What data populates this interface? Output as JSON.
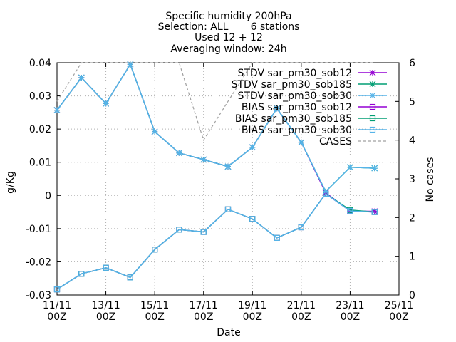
{
  "chart_data": {
    "type": "line",
    "title_lines": [
      "Specific humidity 200hPa",
      "Selection: ALL       6 stations",
      "Used 12 + 12",
      "Averaging window: 24h"
    ],
    "xlabel": "Date",
    "ylabel": "g/Kg",
    "y2label": "No cases",
    "x_ticks": [
      {
        "day": 0,
        "line1": "11/11",
        "line2": "00Z"
      },
      {
        "day": 2,
        "line1": "13/11",
        "line2": "00Z"
      },
      {
        "day": 4,
        "line1": "15/11",
        "line2": "00Z"
      },
      {
        "day": 6,
        "line1": "17/11",
        "line2": "00Z"
      },
      {
        "day": 8,
        "line1": "19/11",
        "line2": "00Z"
      },
      {
        "day": 10,
        "line1": "21/11",
        "line2": "00Z"
      },
      {
        "day": 12,
        "line1": "23/11",
        "line2": "00Z"
      },
      {
        "day": 14,
        "line1": "25/11",
        "line2": "00Z"
      }
    ],
    "xlim": [
      0,
      14
    ],
    "ylim": [
      -0.03,
      0.04
    ],
    "y_ticks": [
      -0.03,
      -0.02,
      -0.01,
      0,
      0.01,
      0.02,
      0.03,
      0.04
    ],
    "y_tick_labels": [
      "-0.03",
      "-0.02",
      "-0.01",
      "0",
      "0.01",
      "0.02",
      "0.03",
      "0.04"
    ],
    "y2lim": [
      0,
      6
    ],
    "y2_ticks": [
      0,
      1,
      2,
      3,
      4,
      5,
      6
    ],
    "y2_tick_labels": [
      "0",
      "1",
      "2",
      "3",
      "4",
      "5",
      "6"
    ],
    "x": [
      0,
      1,
      2,
      3,
      4,
      5,
      6,
      7,
      8,
      9,
      10,
      11,
      12,
      13
    ],
    "series": [
      {
        "name": "STDV sar_p m30_s ob12",
        "legend": "STDV sar_pm30_sob12",
        "kind": "stdv",
        "color": "#9400d3",
        "marker": "star",
        "axis": "y",
        "values": [
          0.0257,
          0.0355,
          0.0277,
          0.0395,
          0.0192,
          0.0128,
          0.0108,
          0.0087,
          0.0145,
          0.0262,
          0.016,
          0.0008,
          -0.0047,
          -0.0048
        ]
      },
      {
        "name": "STDV sar_p m30_s ob185",
        "legend": "STDV sar_pm30_sob185",
        "kind": "stdv",
        "color": "#009e73",
        "marker": "star",
        "axis": "y",
        "values": [
          0.0257,
          0.0355,
          0.0277,
          0.0395,
          0.0192,
          0.0128,
          0.0108,
          0.0087,
          0.0145,
          0.0262,
          0.016,
          0.0012,
          0.0085,
          0.0082
        ]
      },
      {
        "name": "STDV sar_p m30_s ob30",
        "legend": "STDV sar_pm30_sob30",
        "kind": "stdv",
        "color": "#56b4e9",
        "marker": "star",
        "axis": "y",
        "values": [
          0.0257,
          0.0355,
          0.0277,
          0.0395,
          0.0192,
          0.0128,
          0.0108,
          0.0087,
          0.0145,
          0.0262,
          0.016,
          0.0012,
          0.0085,
          0.0082
        ]
      },
      {
        "name": "BIAS sar_p m30_s ob12",
        "legend": "BIAS sar_pm30_sob12",
        "kind": "bias",
        "color": "#9400d3",
        "marker": "square",
        "axis": "y",
        "values": [
          -0.0283,
          -0.0236,
          -0.0218,
          -0.0247,
          -0.0163,
          -0.0103,
          -0.011,
          -0.0042,
          -0.0071,
          -0.0128,
          -0.0096,
          0.0005,
          -0.0047,
          -0.005
        ]
      },
      {
        "name": "BIAS sar_p m30_s ob185",
        "legend": "BIAS sar_pm30_sob185",
        "kind": "bias",
        "color": "#009e73",
        "marker": "square",
        "axis": "y",
        "values": [
          -0.0283,
          -0.0236,
          -0.0218,
          -0.0247,
          -0.0163,
          -0.0103,
          -0.011,
          -0.0042,
          -0.0071,
          -0.0128,
          -0.0096,
          0.0005,
          -0.0044,
          -0.005
        ]
      },
      {
        "name": "BIAS sar_p m30_s ob30",
        "legend": "BIAS sar_pm30_sob30",
        "kind": "bias",
        "color": "#56b4e9",
        "marker": "square",
        "axis": "y",
        "values": [
          -0.0283,
          -0.0236,
          -0.0218,
          -0.0247,
          -0.0163,
          -0.0103,
          -0.011,
          -0.0042,
          -0.0071,
          -0.0128,
          -0.0096,
          0.0005,
          -0.0047,
          -0.005
        ]
      },
      {
        "name": "CASES",
        "legend": "CASES",
        "kind": "cases",
        "color": "#a0a0a0",
        "marker": "none",
        "axis": "y2",
        "values": [
          5,
          6,
          6,
          6,
          6,
          6,
          4,
          5,
          6,
          6,
          6,
          6,
          6,
          6
        ]
      }
    ],
    "legend_position": "top-right",
    "grid": true
  }
}
